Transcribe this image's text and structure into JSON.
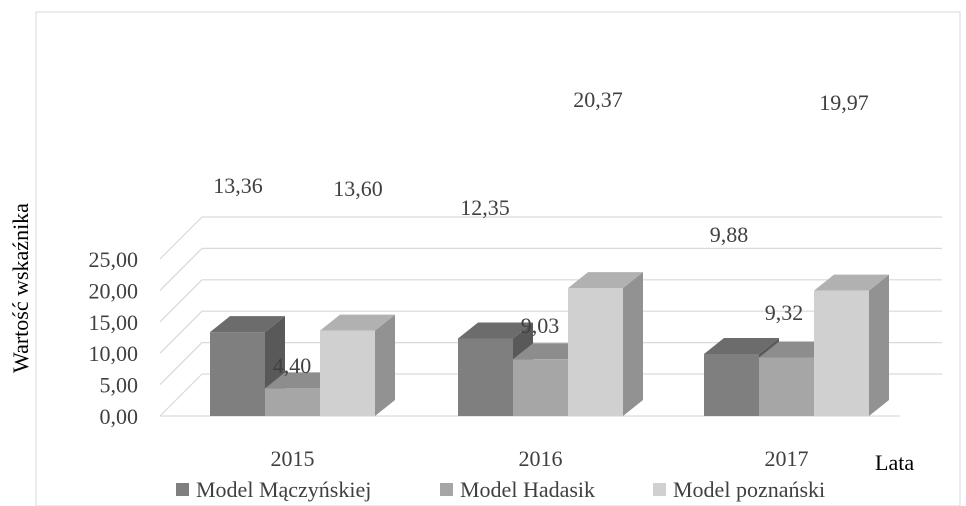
{
  "chart_data": {
    "type": "bar",
    "categories": [
      "2015",
      "2016",
      "2017"
    ],
    "series": [
      {
        "name": "Model Mączyńskiej",
        "values": [
          13.36,
          12.35,
          9.88
        ],
        "labels": [
          "13,36",
          "12,35",
          "9,88"
        ],
        "color": "#7f7f7f"
      },
      {
        "name": "Model Hadasik",
        "values": [
          4.4,
          9.03,
          9.32
        ],
        "labels": [
          "4,40",
          "9,03",
          "9,32"
        ],
        "color": "#a6a6a6"
      },
      {
        "name": "Model poznański",
        "values": [
          13.6,
          20.37,
          19.97
        ],
        "labels": [
          "13,60",
          "20,37",
          "19,97"
        ],
        "color": "#d0d0d0"
      }
    ],
    "ylim": [
      0,
      25
    ],
    "yticks": [
      0,
      5,
      10,
      15,
      20,
      25
    ],
    "ytick_labels": [
      "0,00",
      "5,00",
      "10,00",
      "15,00",
      "20,00",
      "25,00"
    ],
    "ylabel": "Wartość wskaźnika",
    "xlabel": "Lata",
    "legend_position": "bottom",
    "grid": true,
    "three_d": true
  }
}
